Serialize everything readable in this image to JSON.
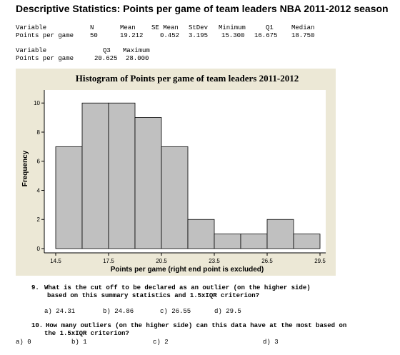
{
  "title": "Descriptive Statistics: Points per game of team leaders NBA 2011-2012 season",
  "stats_table1": {
    "headers": [
      "Variable",
      "N",
      "Mean",
      "SE Mean",
      "StDev",
      "Minimum",
      "Q1",
      "Median"
    ],
    "row": [
      "Points per game",
      "50",
      "19.212",
      "0.452",
      "3.195",
      "15.300",
      "16.675",
      "18.750"
    ]
  },
  "stats_table2": {
    "headers": [
      "Variable",
      "Q3",
      "Maximum"
    ],
    "row": [
      "Points per game",
      "20.625",
      "28.000"
    ]
  },
  "chart_data": {
    "type": "bar",
    "title": "Histogram of Points per game of team leaders 2011-2012",
    "xlabel": "Points per game (right end point is excluded)",
    "ylabel": "Frequency",
    "bin_edges": [
      14.5,
      16.0,
      17.5,
      19.0,
      20.5,
      22.0,
      23.5,
      25.0,
      26.5,
      28.0,
      29.5
    ],
    "values": [
      7,
      10,
      10,
      9,
      7,
      2,
      1,
      1,
      2,
      1
    ],
    "x_ticks": [
      "14.5",
      "17.5",
      "20.5",
      "23.5",
      "26.5",
      "29.5"
    ],
    "y_ticks": [
      "0",
      "2",
      "4",
      "6",
      "8",
      "10"
    ],
    "ylim": [
      0,
      10.6
    ],
    "xlim": [
      14.5,
      29.5
    ],
    "bar_color": "#c0c0c0",
    "frame_color": "#ece8d6"
  },
  "questions": {
    "q9_number": "9.",
    "q9_line1": "What is the cut off to be declared as an outlier (on the higher side)",
    "q9_line2": "based on this summary statistics and 1.5xIQR criterion?",
    "q9_a": "a) 24.31",
    "q9_b": "b) 24.86",
    "q9_c": "c) 26.55",
    "q9_d": "d) 29.5",
    "q10_number": "10.",
    "q10_line1": "How many outliers (on the higher side) can this data have at the most based on",
    "q10_line2": "the 1.5xIQR criterion?",
    "q10_a": "a) 0",
    "q10_b": "b) 1",
    "q10_c": "c) 2",
    "q10_d": "d) 3"
  }
}
